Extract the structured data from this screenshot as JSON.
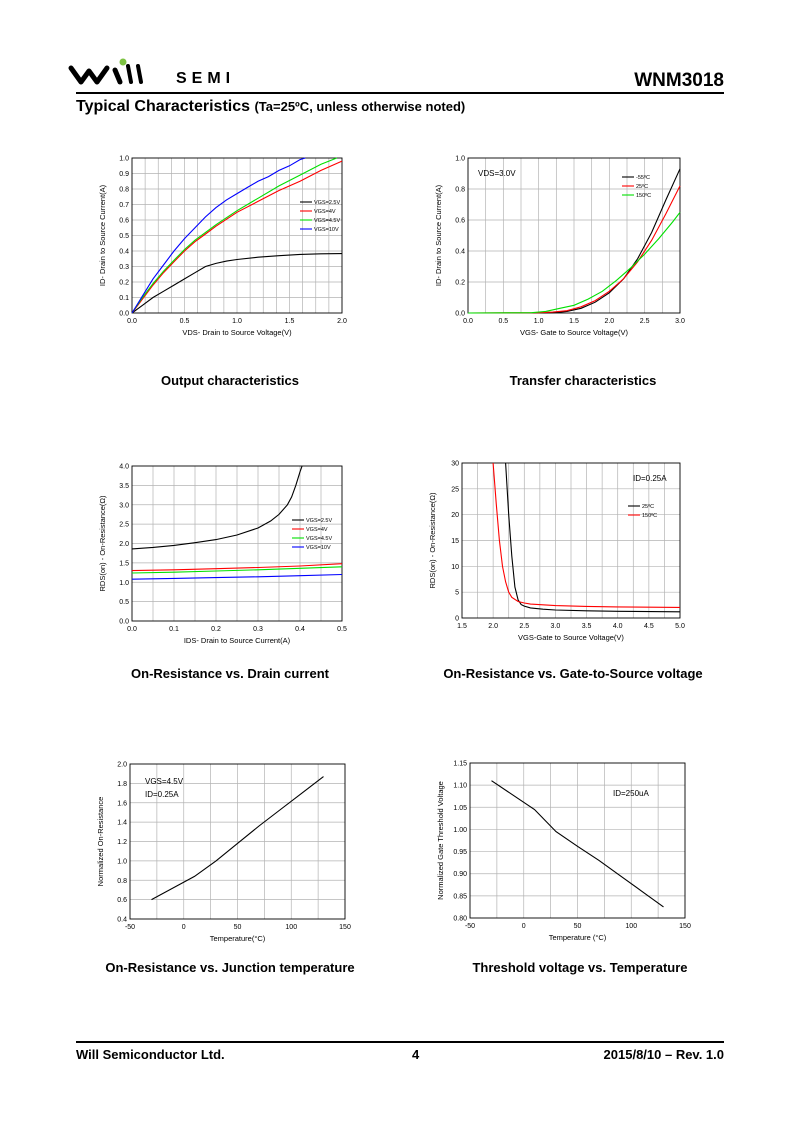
{
  "header": {
    "company_word": "SEMI",
    "part_number": "WNM3018",
    "section_title": "Typical Characteristics",
    "section_condition": "(Ta=25ºC, unless otherwise noted)"
  },
  "captions": {
    "c1": "Output characteristics",
    "c2": "Transfer characteristics",
    "c3": "On-Resistance vs. Drain current",
    "c4": "On-Resistance vs. Gate-to-Source voltage",
    "c5": "On-Resistance vs. Junction temperature",
    "c6": "Threshold voltage vs. Temperature"
  },
  "footer": {
    "company": "Will Semiconductor Ltd.",
    "page": "4",
    "date_rev": "2015/8/10 – Rev. 1.0"
  },
  "colors": {
    "black": "#000000",
    "red": "#ff0000",
    "green": "#00e000",
    "blue": "#0000ff",
    "logo_green": "#7dc242"
  },
  "chart_data": [
    {
      "type": "line",
      "xlabel": "VDS- Drain to Source Voltage(V)",
      "ylabel": "ID- Drain to Source Current(A)",
      "xlim": [
        0,
        2
      ],
      "ylim": [
        0,
        1
      ],
      "xticks": [
        "0.0",
        "0.5",
        "1.0",
        "1.5",
        "2.0"
      ],
      "yticks": [
        "0.0",
        "0.1",
        "0.2",
        "0.3",
        "0.4",
        "0.5",
        "0.6",
        "0.7",
        "0.8",
        "0.9",
        "1.0"
      ],
      "grid": true,
      "legend": "right",
      "series": [
        {
          "name": "VGS=2.5V",
          "color": "#000000",
          "x": [
            0,
            0.1,
            0.2,
            0.3,
            0.4,
            0.5,
            0.6,
            0.7,
            0.8,
            0.9,
            1.0,
            1.2,
            1.4,
            1.6,
            1.8,
            2.0
          ],
          "y": [
            0,
            0.05,
            0.1,
            0.14,
            0.18,
            0.22,
            0.26,
            0.3,
            0.32,
            0.335,
            0.345,
            0.36,
            0.37,
            0.378,
            0.382,
            0.383
          ]
        },
        {
          "name": "VGS=4V",
          "color": "#ff0000",
          "x": [
            0,
            0.1,
            0.2,
            0.3,
            0.4,
            0.5,
            0.6,
            0.7,
            0.8,
            1.0,
            1.2,
            1.4,
            1.6,
            1.8,
            2.0
          ],
          "y": [
            0,
            0.09,
            0.18,
            0.26,
            0.33,
            0.4,
            0.46,
            0.51,
            0.56,
            0.65,
            0.72,
            0.79,
            0.85,
            0.92,
            0.98
          ]
        },
        {
          "name": "VGS=4.5V",
          "color": "#00e000",
          "x": [
            0,
            0.1,
            0.2,
            0.3,
            0.4,
            0.5,
            0.6,
            0.7,
            0.8,
            1.0,
            1.2,
            1.4,
            1.6,
            1.8,
            1.95
          ],
          "y": [
            0,
            0.1,
            0.19,
            0.27,
            0.34,
            0.41,
            0.47,
            0.52,
            0.57,
            0.66,
            0.74,
            0.82,
            0.89,
            0.96,
            1.0
          ]
        },
        {
          "name": "VGS=10V",
          "color": "#0000ff",
          "x": [
            0,
            0.1,
            0.2,
            0.3,
            0.4,
            0.5,
            0.6,
            0.7,
            0.8,
            0.9,
            1.0,
            1.1,
            1.2,
            1.3,
            1.4,
            1.5,
            1.6,
            1.65
          ],
          "y": [
            0,
            0.11,
            0.22,
            0.31,
            0.4,
            0.48,
            0.55,
            0.62,
            0.68,
            0.73,
            0.77,
            0.81,
            0.85,
            0.88,
            0.92,
            0.95,
            0.99,
            1.0
          ]
        }
      ]
    },
    {
      "type": "line",
      "xlabel": "VGS- Gate to Source Voltage(V)",
      "ylabel": "ID- Drain to Source Current(A)",
      "xlim": [
        0,
        3
      ],
      "ylim": [
        0,
        1
      ],
      "xticks": [
        "0.0",
        "0.5",
        "1.0",
        "1.5",
        "2.0",
        "2.5",
        "3.0"
      ],
      "yticks": [
        "0.0",
        "0.2",
        "0.4",
        "0.6",
        "0.8",
        "1.0"
      ],
      "grid": true,
      "legend": "top-right",
      "annotation": "VDS=3.0V",
      "series": [
        {
          "name": "-55ºC",
          "color": "#000000",
          "x": [
            0,
            1.0,
            1.2,
            1.4,
            1.6,
            1.8,
            2.0,
            2.2,
            2.4,
            2.6,
            2.8,
            3.0
          ],
          "y": [
            0,
            0,
            0.002,
            0.01,
            0.03,
            0.07,
            0.13,
            0.22,
            0.35,
            0.52,
            0.73,
            0.93
          ]
        },
        {
          "name": "25ºC",
          "color": "#ff0000",
          "x": [
            0,
            1.0,
            1.2,
            1.4,
            1.6,
            1.8,
            2.0,
            2.2,
            2.4,
            2.6,
            2.8,
            3.0
          ],
          "y": [
            0,
            0.002,
            0.006,
            0.015,
            0.04,
            0.08,
            0.14,
            0.22,
            0.33,
            0.47,
            0.64,
            0.82
          ]
        },
        {
          "name": "150ºC",
          "color": "#00e000",
          "x": [
            0,
            0.9,
            1.1,
            1.3,
            1.5,
            1.7,
            1.9,
            2.1,
            2.3,
            2.5,
            2.7,
            2.9,
            3.0
          ],
          "y": [
            0,
            0.002,
            0.01,
            0.03,
            0.05,
            0.09,
            0.14,
            0.21,
            0.29,
            0.38,
            0.48,
            0.59,
            0.65
          ]
        }
      ]
    },
    {
      "type": "line",
      "xlabel": "IDS- Drain to Source Current(A)",
      "ylabel": "RDS(on) - On-Resistance(Ω)",
      "xlim": [
        0,
        0.5
      ],
      "ylim": [
        0,
        4
      ],
      "xticks": [
        "0.0",
        "0.1",
        "0.2",
        "0.3",
        "0.4",
        "0.5"
      ],
      "yticks": [
        "0.0",
        "0.5",
        "1.0",
        "1.5",
        "2.0",
        "2.5",
        "3.0",
        "3.5",
        "4.0"
      ],
      "grid": true,
      "legend": "right",
      "series": [
        {
          "name": "VGS=2.5V",
          "color": "#000000",
          "x": [
            0,
            0.05,
            0.1,
            0.15,
            0.2,
            0.25,
            0.3,
            0.33,
            0.35,
            0.37,
            0.38,
            0.39,
            0.4,
            0.405
          ],
          "y": [
            1.86,
            1.9,
            1.95,
            2.02,
            2.1,
            2.22,
            2.4,
            2.58,
            2.75,
            3.0,
            3.2,
            3.5,
            3.85,
            4.0
          ]
        },
        {
          "name": "VGS=4V",
          "color": "#ff0000",
          "x": [
            0,
            0.1,
            0.2,
            0.3,
            0.4,
            0.5
          ],
          "y": [
            1.3,
            1.32,
            1.35,
            1.38,
            1.42,
            1.48
          ]
        },
        {
          "name": "VGS=4.5V",
          "color": "#00e000",
          "x": [
            0,
            0.1,
            0.2,
            0.3,
            0.4,
            0.5
          ],
          "y": [
            1.24,
            1.26,
            1.29,
            1.32,
            1.36,
            1.4
          ]
        },
        {
          "name": "VGS=10V",
          "color": "#0000ff",
          "x": [
            0,
            0.1,
            0.2,
            0.3,
            0.4,
            0.5
          ],
          "y": [
            1.08,
            1.1,
            1.12,
            1.14,
            1.17,
            1.2
          ]
        }
      ]
    },
    {
      "type": "line",
      "xlabel": "VGS-Gate to Source Voltage(V)",
      "ylabel": "RDS(on) - On-Resistance(Ω)",
      "xlim": [
        1.5,
        5
      ],
      "ylim": [
        0,
        30
      ],
      "xticks": [
        "1.5",
        "2.0",
        "2.5",
        "3.0",
        "3.5",
        "4.0",
        "4.5",
        "5.0"
      ],
      "yticks": [
        "0",
        "5",
        "10",
        "15",
        "20",
        "25",
        "30"
      ],
      "grid": true,
      "legend": "top-right",
      "annotation": "ID=0.25A",
      "series": [
        {
          "name": "25ºC",
          "color": "#000000",
          "x": [
            2.2,
            2.25,
            2.3,
            2.35,
            2.4,
            2.45,
            2.5,
            2.6,
            2.8,
            3.0,
            3.5,
            4.0,
            5.0
          ],
          "y": [
            30,
            20,
            12,
            6,
            3.5,
            2.6,
            2.3,
            1.95,
            1.7,
            1.55,
            1.4,
            1.3,
            1.2
          ]
        },
        {
          "name": "150ºC",
          "color": "#ff0000",
          "x": [
            2.0,
            2.05,
            2.1,
            2.15,
            2.2,
            2.25,
            2.3,
            2.4,
            2.5,
            2.6,
            3.0,
            3.5,
            4.0,
            5.0
          ],
          "y": [
            30,
            22,
            15,
            10,
            7,
            5,
            4,
            3.2,
            2.9,
            2.7,
            2.4,
            2.25,
            2.15,
            2.05
          ]
        }
      ]
    },
    {
      "type": "line",
      "xlabel": "Temperature(°C)",
      "ylabel": "Normalized On-Resistance",
      "xlim": [
        -75,
        175
      ],
      "ylim": [
        0.4,
        2.0
      ],
      "xticks": [
        "-50",
        "0",
        "50",
        "100",
        "150"
      ],
      "yticks": [
        "0.4",
        "0.6",
        "0.8",
        "1.0",
        "1.2",
        "1.4",
        "1.6",
        "1.8",
        "2.0"
      ],
      "grid": true,
      "annotations": [
        "VGS=4.5V",
        "ID=0.25A"
      ],
      "series": [
        {
          "color": "#000000",
          "x": [
            -50,
            0,
            25,
            50,
            75,
            100,
            125,
            150
          ],
          "y": [
            0.6,
            0.84,
            1.0,
            1.18,
            1.36,
            1.53,
            1.7,
            1.87
          ]
        }
      ]
    },
    {
      "type": "line",
      "xlabel": "Temperature (°C)",
      "ylabel": "Normalized Gate Threshold Voltage",
      "xlim": [
        -75,
        175
      ],
      "ylim": [
        0.8,
        1.15
      ],
      "xticks": [
        "-50",
        "0",
        "50",
        "100",
        "150"
      ],
      "yticks": [
        "0.80",
        "0.85",
        "0.90",
        "0.95",
        "1.00",
        "1.05",
        "1.10",
        "1.15"
      ],
      "grid": true,
      "annotation": "ID=250uA",
      "series": [
        {
          "color": "#000000",
          "x": [
            -50,
            0,
            25,
            50,
            75,
            100,
            125,
            150
          ],
          "y": [
            1.11,
            1.045,
            0.995,
            0.962,
            0.93,
            0.895,
            0.86,
            0.825
          ]
        }
      ]
    }
  ]
}
